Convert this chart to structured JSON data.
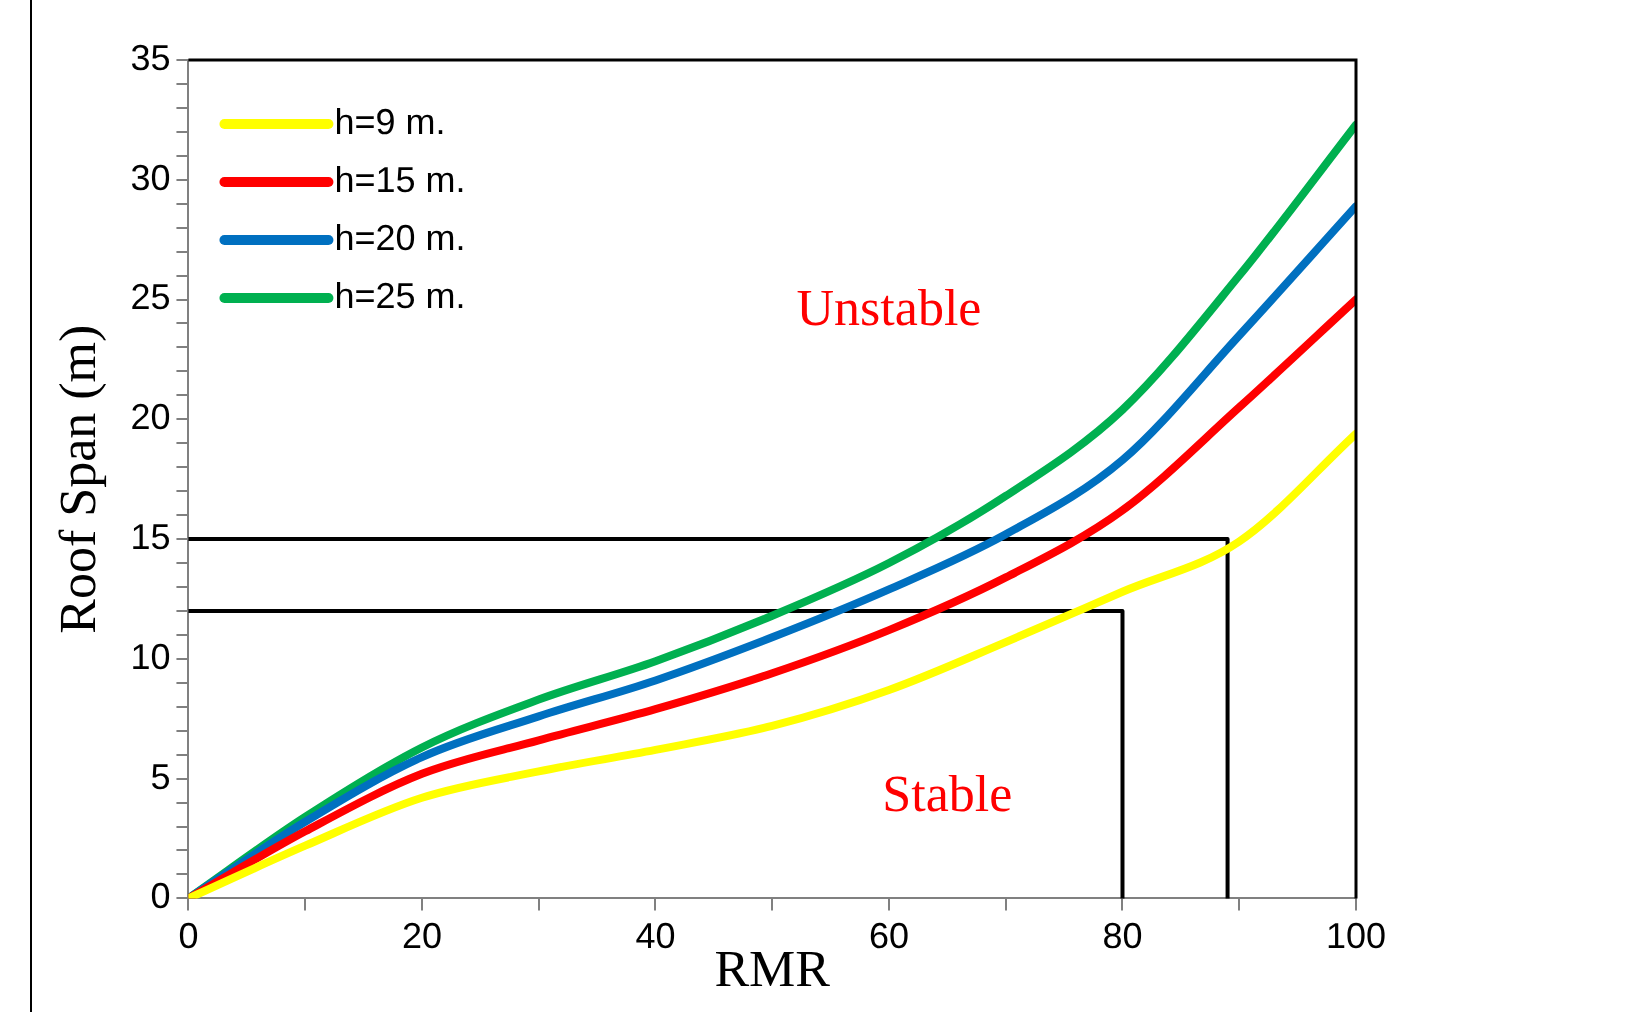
{
  "chart_data": {
    "type": "line",
    "xlabel": "RMR",
    "ylabel": "Roof Span (m)",
    "x": [
      0,
      10,
      20,
      30,
      40,
      50,
      60,
      70,
      80,
      90,
      100
    ],
    "series": [
      {
        "name": "h=9 m.",
        "color": "#ffff00",
        "values": [
          0,
          2.2,
          4.2,
          5.3,
          6.2,
          7.2,
          8.7,
          10.7,
          12.8,
          14.9,
          19.4
        ]
      },
      {
        "name": "h=15 m.",
        "color": "#ff0000",
        "values": [
          0,
          2.8,
          5.2,
          6.6,
          7.9,
          9.4,
          11.2,
          13.4,
          16.2,
          20.5,
          25
        ]
      },
      {
        "name": "h=20 m.",
        "color": "#0070c0",
        "values": [
          0,
          3.2,
          5.9,
          7.6,
          9.1,
          10.9,
          12.9,
          15.2,
          18.3,
          23.5,
          28.9
        ]
      },
      {
        "name": "h=25 m.",
        "color": "#00b050",
        "values": [
          0,
          3.4,
          6.3,
          8.3,
          9.9,
          11.8,
          14.0,
          16.8,
          20.4,
          26,
          32.3
        ]
      },
      {
        "color": "#000000",
        "x": [
          0,
          89,
          89
        ],
        "values": [
          15,
          15,
          0
        ]
      },
      {
        "color": "#000000",
        "x": [
          0,
          80,
          80
        ],
        "values": [
          12,
          12,
          0
        ]
      }
    ],
    "xlim": [
      0,
      100
    ],
    "xticks": [
      0,
      {
        "value": 10,
        "label": null
      },
      20,
      {
        "value": 30,
        "label": null
      },
      40,
      {
        "value": 50,
        "label": null
      },
      60,
      {
        "value": 70,
        "label": null
      },
      80,
      {
        "value": 90,
        "label": null
      },
      100
    ],
    "ylim": [
      0,
      35
    ],
    "yticks": [
      0,
      {
        "value": 1,
        "label": null
      },
      {
        "value": 2,
        "label": null
      },
      {
        "value": 3,
        "label": null
      },
      {
        "value": 4,
        "label": null
      },
      5,
      {
        "value": 6,
        "label": null
      },
      {
        "value": 7,
        "label": null
      },
      {
        "value": 8,
        "label": null
      },
      {
        "value": 9,
        "label": null
      },
      10,
      {
        "value": 11,
        "label": null
      },
      {
        "value": 12,
        "label": null
      },
      {
        "value": 13,
        "label": null
      },
      {
        "value": 14,
        "label": null
      },
      15,
      {
        "value": 16,
        "label": null
      },
      {
        "value": 17,
        "label": null
      },
      {
        "value": 18,
        "label": null
      },
      {
        "value": 19,
        "label": null
      },
      20,
      {
        "value": 21,
        "label": null
      },
      {
        "value": 22,
        "label": null
      },
      {
        "value": 23,
        "label": null
      },
      {
        "value": 24,
        "label": null
      },
      25,
      {
        "value": 26,
        "label": null
      },
      {
        "value": 27,
        "label": null
      },
      {
        "value": 28,
        "label": null
      },
      {
        "value": 29,
        "label": null
      },
      30,
      {
        "value": 31,
        "label": null
      },
      {
        "value": 32,
        "label": null
      },
      {
        "value": 33,
        "label": null
      },
      {
        "value": 34,
        "label": null
      },
      35
    ],
    "annotations": [
      "Unstable",
      "Stable"
    ],
    "grid": false,
    "legend": "top left",
    "marker": "none",
    "line_style": "solid"
  }
}
